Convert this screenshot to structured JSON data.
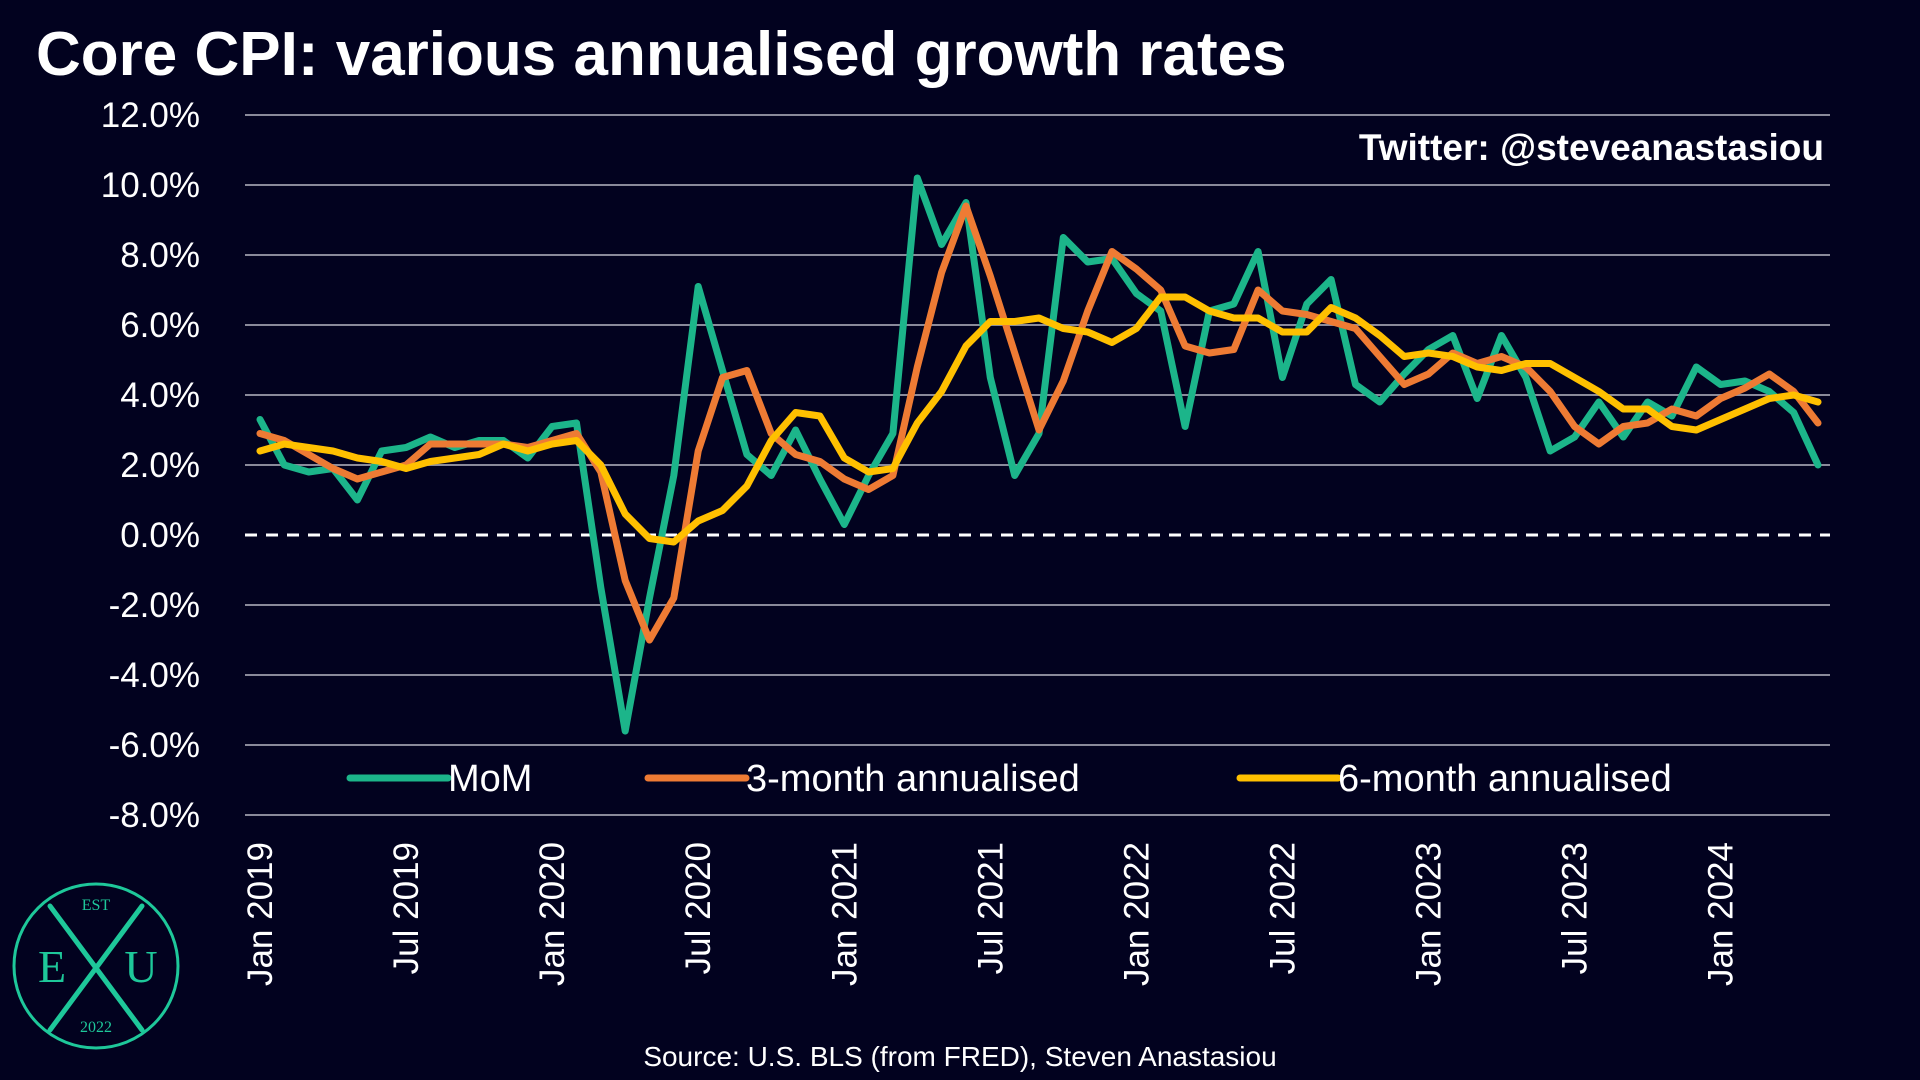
{
  "title": "Core CPI: various annualised growth rates",
  "handle": "Twitter: @steveanastasiou",
  "source": "Source: U.S. BLS (from FRED), Steven Anastasiou",
  "logo": {
    "top": "EST",
    "left": "E",
    "right": "U",
    "bottom": "2022"
  },
  "colors": {
    "background": "#02021f",
    "mom": "#1cb58a",
    "three_month": "#ee7b34",
    "six_month": "#ffc000",
    "logo": "#1ec89a"
  },
  "chart_data": {
    "type": "line",
    "title": "Core CPI: various annualised growth rates",
    "xlabel": "",
    "ylabel": "",
    "ylim": [
      -8,
      12
    ],
    "yticks": [
      "12.0%",
      "10.0%",
      "8.0%",
      "6.0%",
      "4.0%",
      "2.0%",
      "0.0%",
      "-2.0%",
      "-4.0%",
      "-6.0%",
      "-8.0%"
    ],
    "ytick_values": [
      12,
      10,
      8,
      6,
      4,
      2,
      0,
      -2,
      -4,
      -6,
      -8
    ],
    "xtick_labels": [
      "Jan 2019",
      "Jul 2019",
      "Jan 2020",
      "Jul 2020",
      "Jan 2021",
      "Jul 2021",
      "Jan 2022",
      "Jul 2022",
      "Jan 2023",
      "Jul 2023",
      "Jan 2024"
    ],
    "xtick_index": [
      0,
      6,
      12,
      18,
      24,
      30,
      36,
      42,
      48,
      54,
      60
    ],
    "x": [
      "Jan 2019",
      "Feb 2019",
      "Mar 2019",
      "Apr 2019",
      "May 2019",
      "Jun 2019",
      "Jul 2019",
      "Aug 2019",
      "Sep 2019",
      "Oct 2019",
      "Nov 2019",
      "Dec 2019",
      "Jan 2020",
      "Feb 2020",
      "Mar 2020",
      "Apr 2020",
      "May 2020",
      "Jun 2020",
      "Jul 2020",
      "Aug 2020",
      "Sep 2020",
      "Oct 2020",
      "Nov 2020",
      "Dec 2020",
      "Jan 2021",
      "Feb 2021",
      "Mar 2021",
      "Apr 2021",
      "May 2021",
      "Jun 2021",
      "Jul 2021",
      "Aug 2021",
      "Sep 2021",
      "Oct 2021",
      "Nov 2021",
      "Dec 2021",
      "Jan 2022",
      "Feb 2022",
      "Mar 2022",
      "Apr 2022",
      "May 2022",
      "Jun 2022",
      "Jul 2022",
      "Aug 2022",
      "Sep 2022",
      "Oct 2022",
      "Nov 2022",
      "Dec 2022",
      "Jan 2023",
      "Feb 2023",
      "Mar 2023",
      "Apr 2023",
      "May 2023",
      "Jun 2023",
      "Jul 2023",
      "Aug 2023",
      "Sep 2023",
      "Oct 2023",
      "Nov 2023",
      "Dec 2023",
      "Jan 2024",
      "Feb 2024",
      "Mar 2024",
      "Apr 2024",
      "May 2024"
    ],
    "grid": true,
    "zero_line": "dashed",
    "legend_position": "bottom",
    "series": [
      {
        "name": "MoM",
        "color": "#1cb58a",
        "values": [
          3.3,
          2.0,
          1.8,
          1.9,
          1.0,
          2.4,
          2.5,
          2.8,
          2.5,
          2.7,
          2.7,
          2.2,
          3.1,
          3.2,
          -1.5,
          -5.6,
          -1.8,
          1.7,
          7.1,
          4.7,
          2.3,
          1.7,
          3.0,
          1.6,
          0.3,
          1.7,
          2.9,
          10.2,
          8.3,
          9.5,
          4.5,
          1.7,
          2.9,
          8.5,
          7.8,
          7.9,
          6.9,
          6.4,
          3.1,
          6.4,
          6.6,
          8.1,
          4.5,
          6.6,
          7.3,
          4.3,
          3.8,
          4.6,
          5.3,
          5.7,
          3.9,
          5.7,
          4.5,
          2.4,
          2.8,
          3.8,
          2.8,
          3.8,
          3.4,
          4.8,
          4.3,
          4.4,
          4.1,
          3.5,
          2.0
        ]
      },
      {
        "name": "3-month annualised",
        "color": "#ee7b34",
        "values": [
          2.9,
          2.7,
          2.3,
          1.9,
          1.6,
          1.8,
          2.0,
          2.6,
          2.6,
          2.6,
          2.6,
          2.5,
          2.7,
          2.9,
          1.8,
          -1.3,
          -3.0,
          -1.8,
          2.4,
          4.5,
          4.7,
          2.9,
          2.3,
          2.1,
          1.6,
          1.3,
          1.7,
          4.8,
          7.5,
          9.4,
          7.4,
          5.2,
          3.0,
          4.4,
          6.4,
          8.1,
          7.6,
          7.0,
          5.4,
          5.2,
          5.3,
          7.0,
          6.4,
          6.3,
          6.1,
          5.9,
          5.1,
          4.3,
          4.6,
          5.2,
          4.9,
          5.1,
          4.8,
          4.1,
          3.1,
          2.6,
          3.1,
          3.2,
          3.6,
          3.4,
          3.9,
          4.2,
          4.6,
          4.1,
          3.2
        ]
      },
      {
        "name": "6-month annualised",
        "color": "#ffc000",
        "values": [
          2.4,
          2.6,
          2.5,
          2.4,
          2.2,
          2.1,
          1.9,
          2.1,
          2.2,
          2.3,
          2.6,
          2.4,
          2.6,
          2.7,
          2.0,
          0.6,
          -0.1,
          -0.2,
          0.4,
          0.7,
          1.4,
          2.7,
          3.5,
          3.4,
          2.2,
          1.8,
          1.9,
          3.2,
          4.1,
          5.4,
          6.1,
          6.1,
          6.2,
          5.9,
          5.8,
          5.5,
          5.9,
          6.8,
          6.8,
          6.4,
          6.2,
          6.2,
          5.8,
          5.8,
          6.5,
          6.2,
          5.7,
          5.1,
          5.2,
          5.1,
          4.8,
          4.7,
          4.9,
          4.9,
          4.5,
          4.1,
          3.6,
          3.6,
          3.1,
          3.0,
          3.3,
          3.6,
          3.9,
          4.0,
          3.8
        ]
      }
    ]
  }
}
